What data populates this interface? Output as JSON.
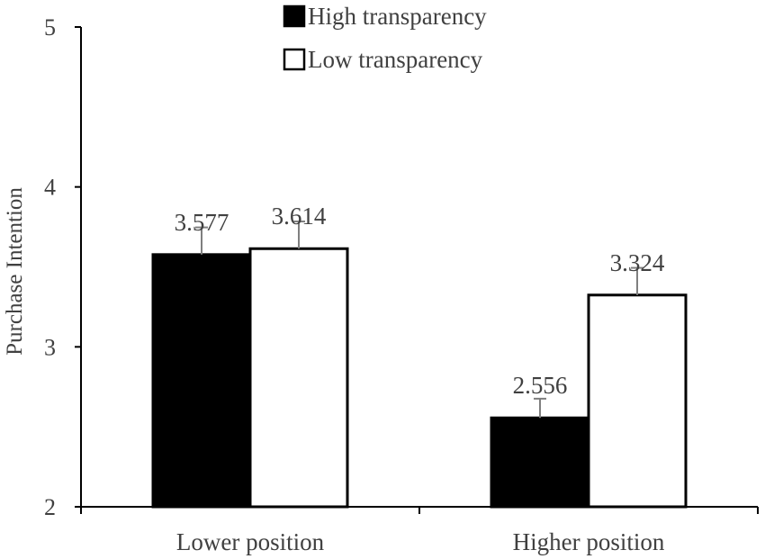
{
  "chart_data": {
    "type": "bar",
    "categories": [
      "Lower position",
      "Higher position"
    ],
    "series": [
      {
        "name": "High transparency",
        "values": [
          3.577,
          2.556
        ],
        "labels": [
          "3.577",
          "2.556"
        ],
        "error": [
          0.17,
          0.12
        ],
        "fill": "#000000"
      },
      {
        "name": "Low transparency",
        "values": [
          3.614,
          3.324
        ],
        "labels": [
          "3.614",
          "3.324"
        ],
        "error": [
          0.17,
          0.17
        ],
        "fill": "#ffffff"
      }
    ],
    "xlabel": "",
    "ylabel": "Purchase Intention",
    "ylim": [
      2,
      5
    ],
    "yticks": [
      "2",
      "3",
      "4",
      "5"
    ],
    "grid": false,
    "legend_position": "top"
  }
}
